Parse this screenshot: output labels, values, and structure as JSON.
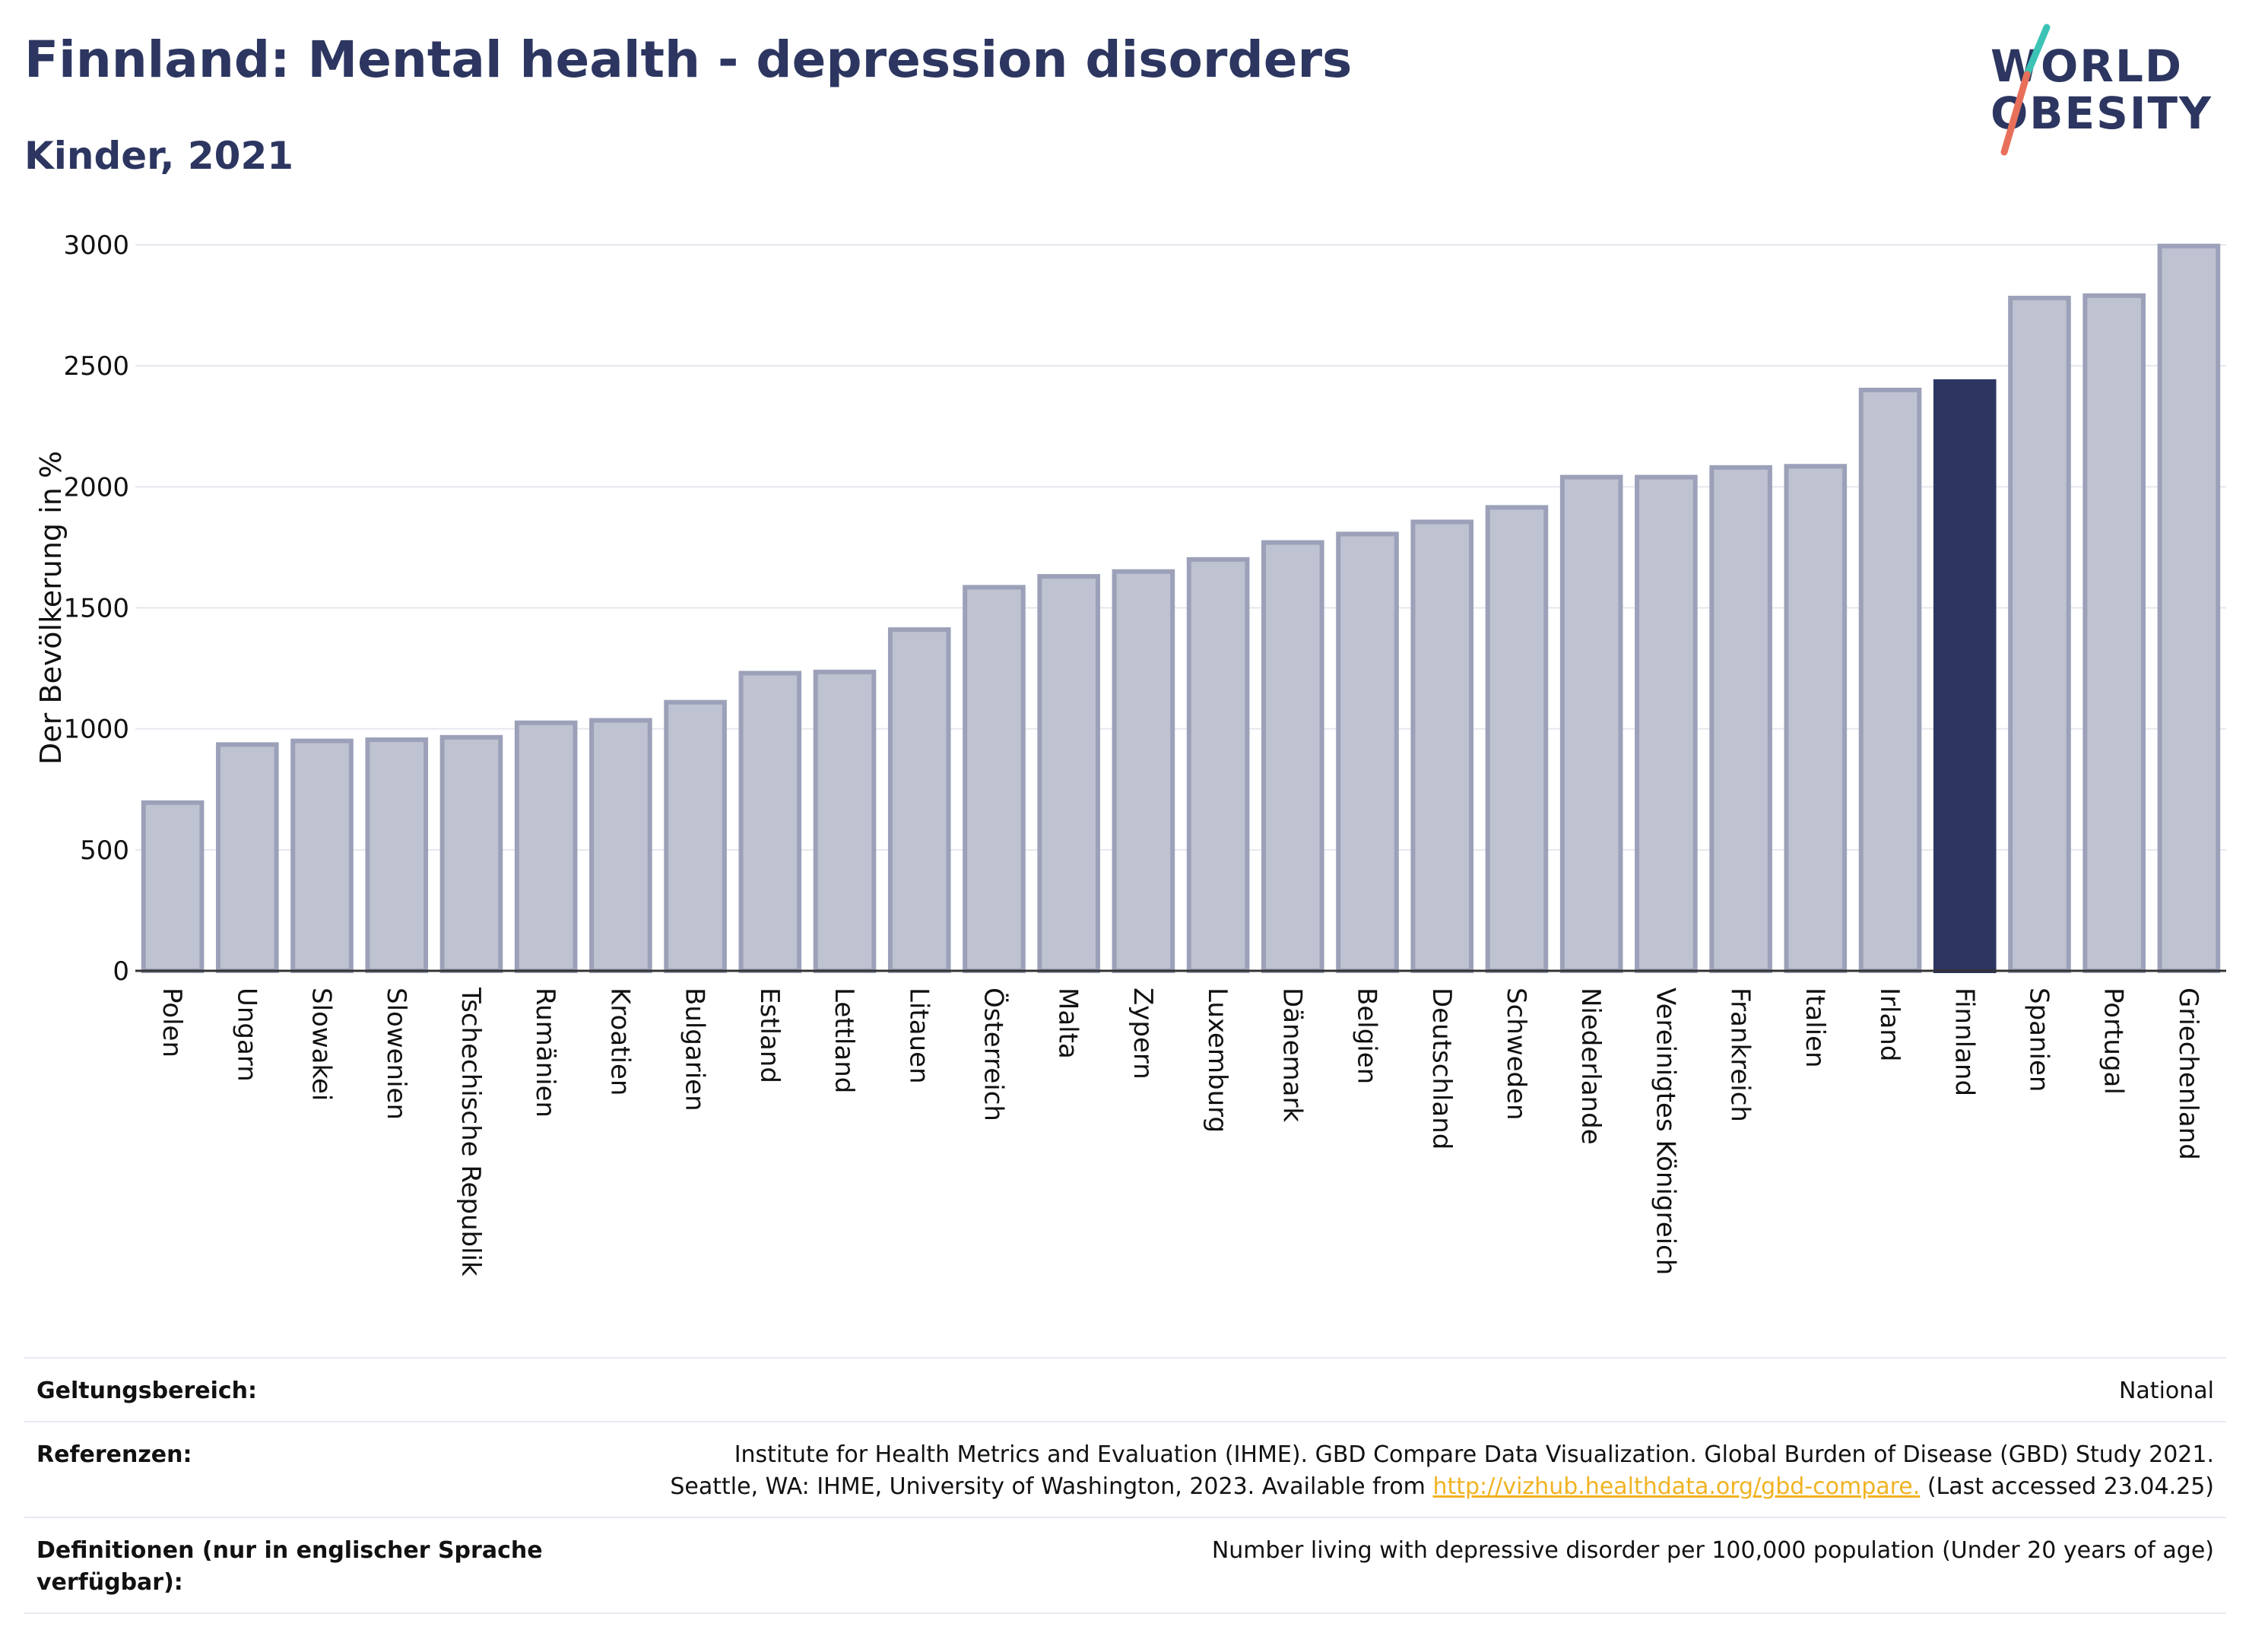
{
  "header": {
    "title": "Finnland: Mental health - depression disorders",
    "subtitle": "Kinder, 2021"
  },
  "logo": {
    "line1": "WORLD",
    "line2": "OBESITY"
  },
  "colors": {
    "highlight": "#2c3660",
    "bar_fill": "#bfc2d0",
    "bar_stroke": "#9ca1b9",
    "grid": "#e6e7ee",
    "logo_slash_teal": "#3cc3b6",
    "logo_slash_coral": "#e8705a",
    "link": "#f1b323"
  },
  "chart_data": {
    "type": "bar",
    "ylabel": "Der Bevölkerung in %",
    "ylim": [
      0,
      3000
    ],
    "yticks": [
      0,
      500,
      1000,
      1500,
      2000,
      2500,
      3000
    ],
    "grid": true,
    "highlight": "Finnland",
    "categories": [
      "Polen",
      "Ungarn",
      "Slowakei",
      "Slowenien",
      "Tschechische Republik",
      "Rumänien",
      "Kroatien",
      "Bulgarien",
      "Estland",
      "Lettland",
      "Litauen",
      "Österreich",
      "Malta",
      "Zypern",
      "Luxemburg",
      "Dänemark",
      "Belgien",
      "Deutschland",
      "Schweden",
      "Niederlande",
      "Vereinigtes Königreich",
      "Frankreich",
      "Italien",
      "Irland",
      "Finnland",
      "Spanien",
      "Portugal",
      "Griechenland"
    ],
    "values": [
      695,
      935,
      950,
      955,
      965,
      1025,
      1035,
      1110,
      1230,
      1235,
      1410,
      1585,
      1630,
      1650,
      1700,
      1770,
      1805,
      1855,
      1915,
      2040,
      2040,
      2080,
      2085,
      2400,
      2435,
      2780,
      2790,
      2995
    ]
  },
  "footer": {
    "rows": [
      {
        "key": "Geltungsbereich:",
        "value": "National"
      },
      {
        "key": "Referenzen:",
        "value_line1": "Institute for Health Metrics and Evaluation (IHME). GBD Compare Data Visualization. Global Burden of Disease (GBD) Study 2021.",
        "value_line2_pre": "Seattle, WA: IHME, University of Washington, 2023. Available from ",
        "link": "http://vizhub.healthdata.org/gbd-compare.",
        "value_line2_post": " (Last accessed 23.04.25)"
      },
      {
        "key": "Definitionen (nur in englischer Sprache verfügbar):",
        "value": "Number living with depressive disorder per 100,000 population (Under 20 years of age)"
      }
    ]
  }
}
